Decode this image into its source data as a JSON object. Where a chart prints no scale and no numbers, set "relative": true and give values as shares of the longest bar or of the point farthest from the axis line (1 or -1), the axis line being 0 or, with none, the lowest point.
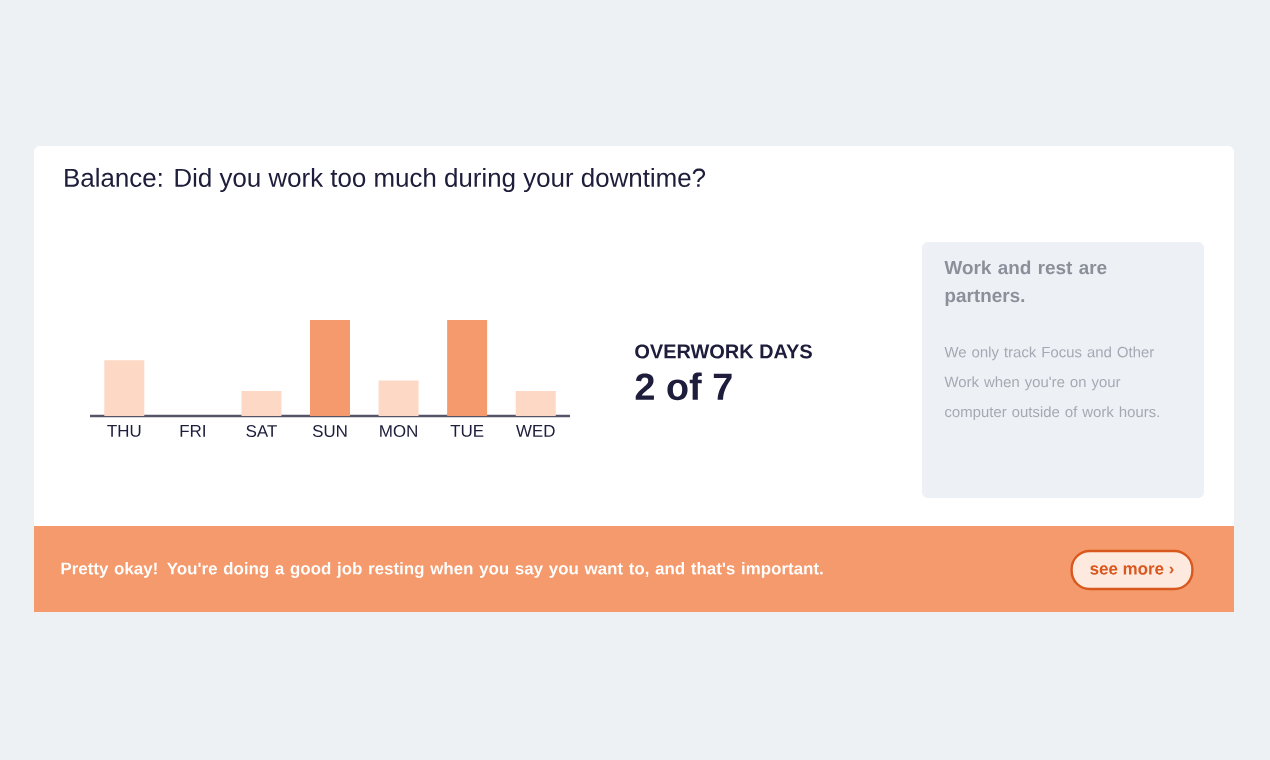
{
  "chart_data": {
    "type": "bar",
    "title": "Balance: Did you work too much during your downtime?",
    "categories": [
      "THU",
      "FRI",
      "SAT",
      "SUN",
      "MON",
      "TUE",
      "WED"
    ],
    "values": [
      0.58,
      0,
      0.26,
      1,
      0.37,
      1,
      0.26
    ],
    "colors": [
      "#fdd8c4",
      "#fdd8c4",
      "#fdd8c4",
      "#f49a6c",
      "#fdd8c4",
      "#f49a6c",
      "#fdd8c4"
    ],
    "relative": true,
    "annotations": [
      "OVERWORK DAYS",
      "2 of 7",
      "Work and rest are partners.",
      "We only track Focus and Other Work when you're on your computer outside of work hours.",
      "Pretty okay! You're doing a good job resting when you say you want to, and that's important.",
      "see more ›"
    ]
  }
}
